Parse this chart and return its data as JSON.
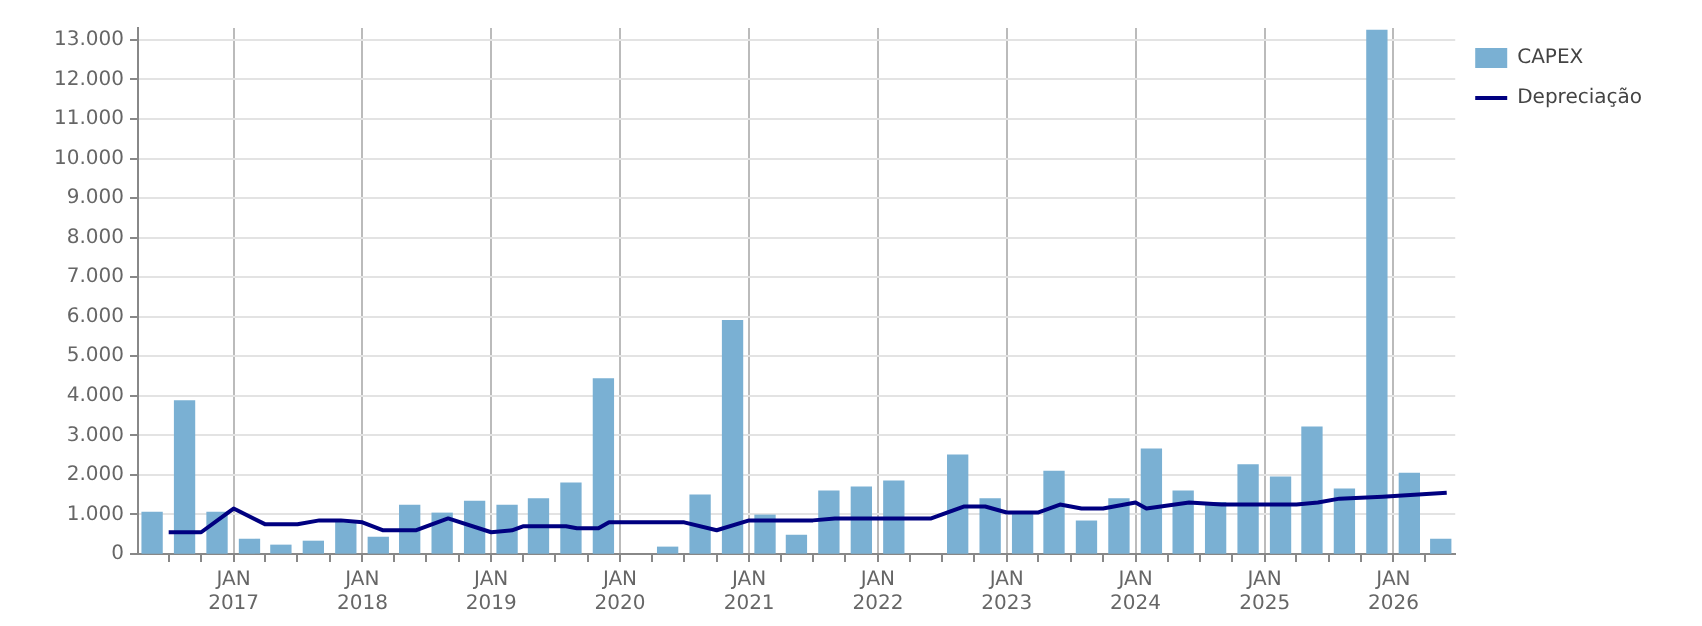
{
  "chart_data": {
    "type": "bar",
    "legend": "top right",
    "grid": true,
    "xlim": [
      "2016-04-05",
      "2026-06-25"
    ],
    "ylim": [
      0,
      13300
    ],
    "xticks": [
      {
        "value": "2016-07",
        "label": null
      },
      {
        "value": "2016-10",
        "label": null
      },
      {
        "value": "2017-01",
        "label": "JAN 2017"
      },
      {
        "value": "2017-04",
        "label": null
      },
      {
        "value": "2017-07",
        "label": null
      },
      {
        "value": "2017-10",
        "label": null
      },
      {
        "value": "2018-01",
        "label": "JAN 2018"
      },
      {
        "value": "2018-04",
        "label": null
      },
      {
        "value": "2018-07",
        "label": null
      },
      {
        "value": "2018-10",
        "label": null
      },
      {
        "value": "2019-01",
        "label": "JAN 2019"
      },
      {
        "value": "2019-04",
        "label": null
      },
      {
        "value": "2019-07",
        "label": null
      },
      {
        "value": "2019-10",
        "label": null
      },
      {
        "value": "2020-01",
        "label": "JAN 2020"
      },
      {
        "value": "2020-04",
        "label": null
      },
      {
        "value": "2020-07",
        "label": null
      },
      {
        "value": "2020-10",
        "label": null
      },
      {
        "value": "2021-01",
        "label": "JAN 2021"
      },
      {
        "value": "2021-04",
        "label": null
      },
      {
        "value": "2021-07",
        "label": null
      },
      {
        "value": "2021-10",
        "label": null
      },
      {
        "value": "2022-01",
        "label": "JAN 2022"
      },
      {
        "value": "2022-04",
        "label": null
      },
      {
        "value": "2022-07",
        "label": null
      },
      {
        "value": "2022-10",
        "label": null
      },
      {
        "value": "2023-01",
        "label": "JAN 2023"
      },
      {
        "value": "2023-04",
        "label": null
      },
      {
        "value": "2023-07",
        "label": null
      },
      {
        "value": "2023-10",
        "label": null
      },
      {
        "value": "2024-01",
        "label": "JAN 2024"
      },
      {
        "value": "2024-04",
        "label": null
      },
      {
        "value": "2024-07",
        "label": null
      },
      {
        "value": "2024-10",
        "label": null
      },
      {
        "value": "2025-01",
        "label": "JAN 2025"
      },
      {
        "value": "2025-04",
        "label": null
      },
      {
        "value": "2025-07",
        "label": null
      },
      {
        "value": "2025-10",
        "label": null
      },
      {
        "value": "2026-01",
        "label": "JAN 2026"
      },
      {
        "value": "2026-04",
        "label": null
      }
    ],
    "yticks": [
      {
        "value": 0,
        "label": "0"
      },
      {
        "value": 1000,
        "label": "1.000"
      },
      {
        "value": 2000,
        "label": "2.000"
      },
      {
        "value": 3000,
        "label": "3.000"
      },
      {
        "value": 4000,
        "label": "4.000"
      },
      {
        "value": 5000,
        "label": "5.000"
      },
      {
        "value": 6000,
        "label": "6.000"
      },
      {
        "value": 7000,
        "label": "7.000"
      },
      {
        "value": 8000,
        "label": "8.000"
      },
      {
        "value": 9000,
        "label": "9.000"
      },
      {
        "value": 10000,
        "label": "10.000"
      },
      {
        "value": 11000,
        "label": "11.000"
      },
      {
        "value": 12000,
        "label": "12.000"
      },
      {
        "value": 13000,
        "label": "13.000"
      }
    ],
    "series": [
      {
        "name": "CAPEX",
        "color": "#7ab0d3",
        "x": [
          "2016-05-15",
          "2016-08-15",
          "2016-11-15",
          "2017-02-15",
          "2017-05-15",
          "2017-08-15",
          "2017-11-15",
          "2018-02-15",
          "2018-05-15",
          "2018-08-15",
          "2018-11-15",
          "2019-02-15",
          "2019-05-15",
          "2019-08-15",
          "2019-11-15",
          "2020-02-15",
          "2020-05-15",
          "2020-08-15",
          "2020-11-15",
          "2021-02-15",
          "2021-05-15",
          "2021-08-15",
          "2021-11-15",
          "2022-02-15",
          "2022-05-15",
          "2022-08-15",
          "2022-11-15",
          "2023-02-15",
          "2023-05-15",
          "2023-08-15",
          "2023-11-15",
          "2024-02-15",
          "2024-05-15",
          "2024-08-15",
          "2024-11-15",
          "2025-02-15",
          "2025-05-15",
          "2025-08-15",
          "2025-11-15",
          "2026-02-15",
          "2026-05-15"
        ],
        "values": [
          1050,
          3870,
          1050,
          370,
          220,
          320,
          800,
          420,
          1230,
          1030,
          1330,
          1230,
          1390,
          1790,
          4430,
          null,
          170,
          1490,
          5900,
          980,
          470,
          1590,
          1690,
          1840,
          null,
          2500,
          1390,
          1000,
          2090,
          830,
          1390,
          2650,
          1590,
          1300,
          2250,
          1940,
          3210,
          1640,
          13240,
          2040,
          370
        ]
      },
      {
        "name": "Depreciação",
        "type": "line",
        "color": "#000080",
        "x": [
          "2016-07",
          "2016-10",
          "2017-01",
          "2017-04",
          "2017-07",
          "2017-09",
          "2017-11",
          "2018-01",
          "2018-03",
          "2018-06",
          "2018-09",
          "2019-01",
          "2019-03",
          "2019-04",
          "2019-08",
          "2019-09",
          "2019-11",
          "2019-12",
          "2020-07",
          "2020-10",
          "2021-01",
          "2021-07",
          "2021-09",
          "2022-06",
          "2022-09",
          "2022-11",
          "2023-01",
          "2023-04",
          "2023-06",
          "2023-08",
          "2023-10",
          "2024-01",
          "2024-02",
          "2024-06",
          "2024-09",
          "2025-04",
          "2025-06",
          "2025-08",
          "2025-12",
          "2026-03",
          "2026-06"
        ],
        "values": [
          550,
          550,
          1150,
          750,
          750,
          850,
          850,
          800,
          600,
          600,
          900,
          550,
          600,
          700,
          700,
          650,
          650,
          800,
          800,
          600,
          850,
          850,
          900,
          900,
          1200,
          1200,
          1050,
          1050,
          1250,
          1150,
          1150,
          1300,
          1150,
          1300,
          1250,
          1250,
          1300,
          1400,
          1450,
          1500,
          1550
        ]
      }
    ]
  }
}
